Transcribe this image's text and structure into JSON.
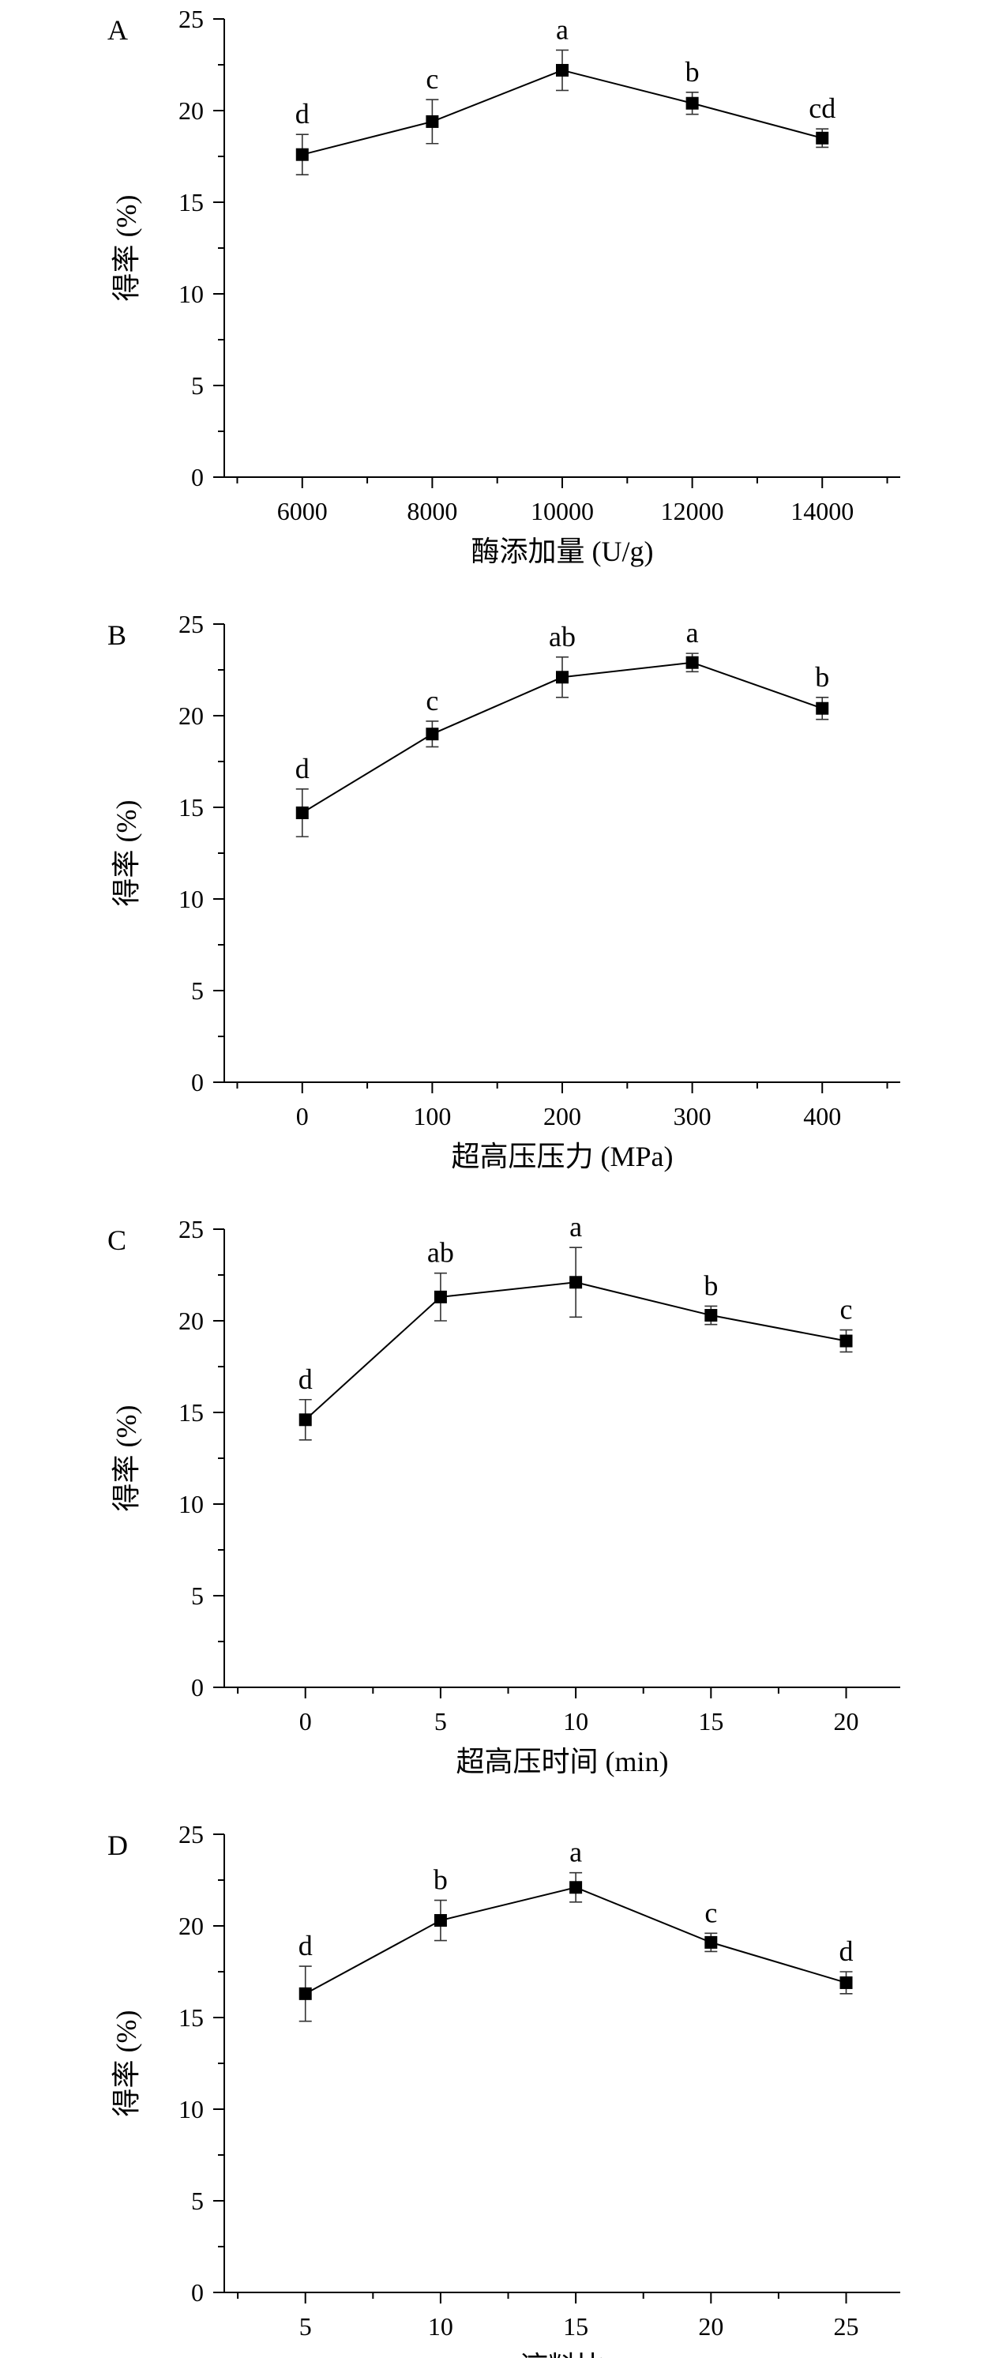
{
  "chart_data": [
    {
      "type": "line",
      "panel": "A",
      "xlabel": "酶添加量 (U/g)",
      "ylabel": "得率 (%)",
      "xlim": [
        4800,
        15200
      ],
      "ylim": [
        0,
        25
      ],
      "xticks": [
        6000,
        8000,
        10000,
        12000,
        14000
      ],
      "yticks": [
        0,
        5,
        10,
        15,
        20,
        25
      ],
      "x": [
        6000,
        8000,
        10000,
        12000,
        14000
      ],
      "y": [
        17.6,
        19.4,
        22.2,
        20.4,
        18.5
      ],
      "err": [
        1.1,
        1.2,
        1.1,
        0.6,
        0.5
      ],
      "labels": [
        "d",
        "c",
        "a",
        "b",
        "cd"
      ]
    },
    {
      "type": "line",
      "panel": "B",
      "xlabel": "超高压压力 (MPa)",
      "ylabel": "得率 (%)",
      "xlim": [
        -60,
        460
      ],
      "ylim": [
        0,
        25
      ],
      "xticks": [
        0,
        100,
        200,
        300,
        400
      ],
      "yticks": [
        0,
        5,
        10,
        15,
        20,
        25
      ],
      "x": [
        0,
        100,
        200,
        300,
        400
      ],
      "y": [
        14.7,
        19.0,
        22.1,
        22.9,
        20.4
      ],
      "err": [
        1.3,
        0.7,
        1.1,
        0.5,
        0.6
      ],
      "labels": [
        "d",
        "c",
        "ab",
        "a",
        "b"
      ]
    },
    {
      "type": "line",
      "panel": "C",
      "xlabel": "超高压时间 (min)",
      "ylabel": "得率 (%)",
      "xlim": [
        -3,
        22
      ],
      "ylim": [
        0,
        25
      ],
      "xticks": [
        0,
        5,
        10,
        15,
        20
      ],
      "yticks": [
        0,
        5,
        10,
        15,
        20,
        25
      ],
      "x": [
        0,
        5,
        10,
        15,
        20
      ],
      "y": [
        14.6,
        21.3,
        22.1,
        20.3,
        18.9
      ],
      "err": [
        1.1,
        1.3,
        1.9,
        0.5,
        0.6
      ],
      "labels": [
        "d",
        "ab",
        "a",
        "b",
        "c"
      ]
    },
    {
      "type": "line",
      "panel": "D",
      "xlabel": "液料比",
      "ylabel": "得率 (%)",
      "xlim": [
        2,
        27
      ],
      "ylim": [
        0,
        25
      ],
      "xticks": [
        5,
        10,
        15,
        20,
        25
      ],
      "yticks": [
        0,
        5,
        10,
        15,
        20,
        25
      ],
      "x": [
        5,
        10,
        15,
        20,
        25
      ],
      "y": [
        16.3,
        20.3,
        22.1,
        19.1,
        16.9
      ],
      "err": [
        1.5,
        1.1,
        0.8,
        0.5,
        0.6
      ],
      "labels": [
        "d",
        "b",
        "a",
        "c",
        "d"
      ]
    }
  ]
}
